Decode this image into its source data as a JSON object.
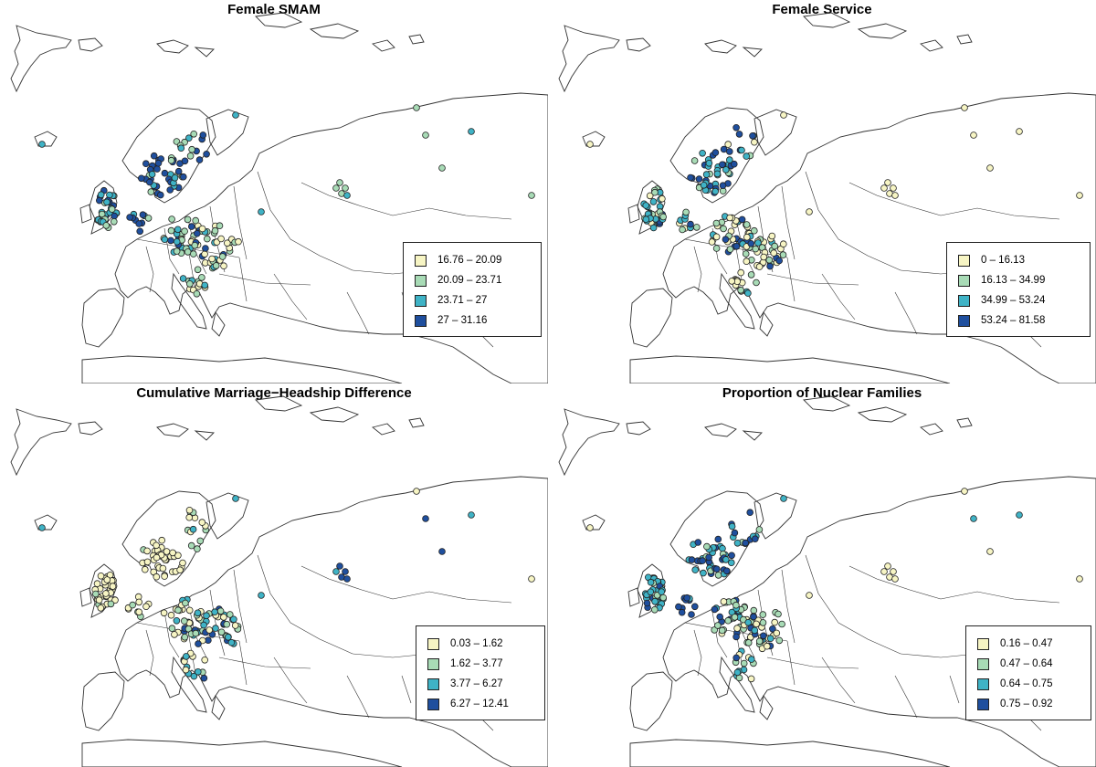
{
  "colors": {
    "class1": "#f7f5c4",
    "class2": "#a8dbb6",
    "class3": "#3fb3c6",
    "class4": "#1f4f9e",
    "outline": "#222222",
    "land": "#333333"
  },
  "panels": [
    {
      "id": "female-smam",
      "title": "Female SMAM",
      "legend": [
        {
          "label": "16.76 – 20.09",
          "class": "class1"
        },
        {
          "label": "20.09 – 23.71",
          "class": "class2"
        },
        {
          "label": "23.71 – 27",
          "class": "class3"
        },
        {
          "label": "27 – 31.16",
          "class": "class4"
        }
      ],
      "pattern": "smam"
    },
    {
      "id": "female-service",
      "title": "Female Service",
      "legend": [
        {
          "label": "0 – 16.13",
          "class": "class1"
        },
        {
          "label": "16.13 – 34.99",
          "class": "class2"
        },
        {
          "label": "34.99 – 53.24",
          "class": "class3"
        },
        {
          "label": "53.24 – 81.58",
          "class": "class4"
        }
      ],
      "pattern": "service"
    },
    {
      "id": "marriage-headship",
      "title": "Cumulative Marriage−Headship Difference",
      "legend": [
        {
          "label": "0.03 – 1.62",
          "class": "class1"
        },
        {
          "label": "1.62 – 3.77",
          "class": "class2"
        },
        {
          "label": "3.77 – 6.27",
          "class": "class3"
        },
        {
          "label": "6.27 – 12.41",
          "class": "class4"
        }
      ],
      "pattern": "headship"
    },
    {
      "id": "nuclear-families",
      "title": "Proportion of Nuclear Families",
      "legend": [
        {
          "label": "0.16 – 0.47",
          "class": "class1"
        },
        {
          "label": "0.47 – 0.64",
          "class": "class2"
        },
        {
          "label": "0.64 – 0.75",
          "class": "class3"
        },
        {
          "label": "0.75 – 0.92",
          "class": "class4"
        }
      ],
      "pattern": "nuclear"
    }
  ]
}
